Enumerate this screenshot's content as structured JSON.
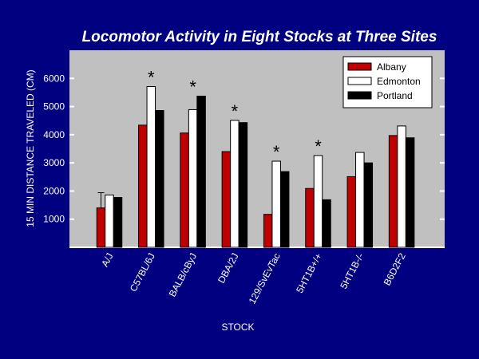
{
  "chart_data": {
    "type": "bar",
    "title": "Locomotor Activity in Eight Stocks at Three Sites",
    "xlabel": "STOCK",
    "ylabel": "15 MIN DISTANCE TRAVELED (CM)",
    "ylim": [
      0,
      7000
    ],
    "yticks": [
      1000,
      2000,
      3000,
      4000,
      5000,
      6000
    ],
    "grid": false,
    "legend_position": "top-right",
    "categories": [
      "A/J",
      "C57BL/6J",
      "BALB/cByJ",
      "DBA/2J",
      "129/SvEvTac",
      "5HT1B+/+",
      "5HT1B-/-",
      "B6D2F2"
    ],
    "series": [
      {
        "name": "Albany",
        "color": "#c00000",
        "values": [
          1400,
          4340,
          4060,
          3400,
          1170,
          2090,
          2510,
          3970
        ]
      },
      {
        "name": "Edmonton",
        "color": "#ffffff",
        "values": [
          1860,
          5710,
          4890,
          4510,
          3060,
          3260,
          3370,
          4310
        ]
      },
      {
        "name": "Portland",
        "color": "#000000",
        "values": [
          1770,
          4860,
          5370,
          4430,
          2690,
          1690,
          3000,
          3890
        ]
      }
    ],
    "error_bars": [
      {
        "category": "A/J",
        "series": "Albany",
        "upper": 1940
      }
    ],
    "significance_marker": "*",
    "significant_categories": [
      "C57BL/6J",
      "BALB/cByJ",
      "DBA/2J",
      "129/SvEvTac",
      "5HT1B+/+"
    ]
  }
}
